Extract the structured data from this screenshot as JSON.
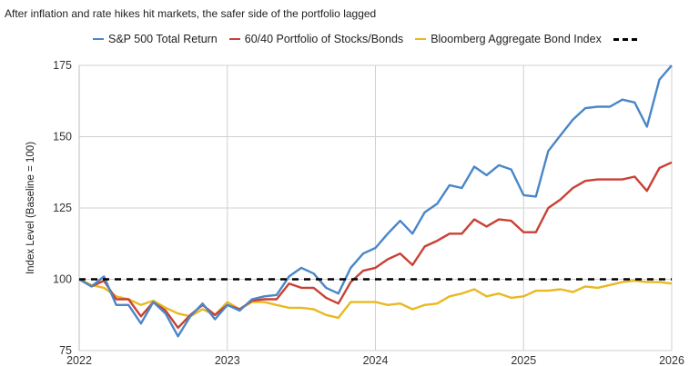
{
  "subtitle": "After inflation and rate hikes hit markets, the safer side of the portfolio lagged",
  "chart_data": {
    "type": "line",
    "ylabel": "Index Level (Baseline = 100)",
    "xlabel": "",
    "xlim": [
      2022,
      2026
    ],
    "ylim": [
      75,
      175
    ],
    "x_ticks": [
      "2022",
      "2023",
      "2024",
      "2025",
      "2026"
    ],
    "y_ticks": [
      "75",
      "100",
      "125",
      "150",
      "175"
    ],
    "grid": true,
    "legend_placement": "top",
    "baseline": {
      "label": "",
      "value": 100,
      "color": "#000000"
    },
    "series": [
      {
        "name": "S&P 500 Total Return",
        "color": "#4a86c8",
        "values": [
          [
            2022.0,
            100
          ],
          [
            2022.083,
            97.5
          ],
          [
            2022.167,
            101
          ],
          [
            2022.25,
            91
          ],
          [
            2022.333,
            91
          ],
          [
            2022.417,
            84.5
          ],
          [
            2022.5,
            92
          ],
          [
            2022.583,
            88
          ],
          [
            2022.667,
            80
          ],
          [
            2022.75,
            87
          ],
          [
            2022.833,
            91.5
          ],
          [
            2022.917,
            86
          ],
          [
            2023.0,
            91
          ],
          [
            2023.083,
            89
          ],
          [
            2023.167,
            93
          ],
          [
            2023.25,
            94
          ],
          [
            2023.333,
            94.5
          ],
          [
            2023.417,
            101
          ],
          [
            2023.5,
            104
          ],
          [
            2023.583,
            102
          ],
          [
            2023.667,
            97
          ],
          [
            2023.75,
            95
          ],
          [
            2023.833,
            104
          ],
          [
            2023.917,
            109
          ],
          [
            2024.0,
            111
          ],
          [
            2024.083,
            116
          ],
          [
            2024.167,
            120.5
          ],
          [
            2024.25,
            116
          ],
          [
            2024.333,
            123.5
          ],
          [
            2024.417,
            126.5
          ],
          [
            2024.5,
            133
          ],
          [
            2024.583,
            132
          ],
          [
            2024.667,
            139.5
          ],
          [
            2024.75,
            136.5
          ],
          [
            2024.833,
            140
          ],
          [
            2024.917,
            138.5
          ],
          [
            2025.0,
            129.5
          ],
          [
            2025.083,
            129
          ],
          [
            2025.167,
            145
          ],
          [
            2025.25,
            150.5
          ],
          [
            2025.333,
            156
          ],
          [
            2025.417,
            160
          ],
          [
            2025.5,
            160.5
          ],
          [
            2025.583,
            160.5
          ],
          [
            2025.667,
            163
          ],
          [
            2025.75,
            162
          ],
          [
            2025.833,
            153.5
          ],
          [
            2025.917,
            170
          ],
          [
            2026.0,
            175
          ]
        ]
      },
      {
        "name": "60/40 Portfolio of Stocks/Bonds",
        "color": "#c94034",
        "values": [
          [
            2022.0,
            100
          ],
          [
            2022.083,
            97.5
          ],
          [
            2022.167,
            99.5
          ],
          [
            2022.25,
            93
          ],
          [
            2022.333,
            93
          ],
          [
            2022.417,
            87
          ],
          [
            2022.5,
            92
          ],
          [
            2022.583,
            89
          ],
          [
            2022.667,
            83
          ],
          [
            2022.75,
            87.5
          ],
          [
            2022.833,
            91
          ],
          [
            2022.917,
            87.5
          ],
          [
            2023.0,
            91
          ],
          [
            2023.083,
            89.5
          ],
          [
            2023.167,
            92.5
          ],
          [
            2023.25,
            93
          ],
          [
            2023.333,
            93
          ],
          [
            2023.417,
            98.5
          ],
          [
            2023.5,
            97
          ],
          [
            2023.583,
            97
          ],
          [
            2023.667,
            93.5
          ],
          [
            2023.75,
            91.5
          ],
          [
            2023.833,
            99
          ],
          [
            2023.917,
            103
          ],
          [
            2024.0,
            104
          ],
          [
            2024.083,
            107
          ],
          [
            2024.167,
            109
          ],
          [
            2024.25,
            105
          ],
          [
            2024.333,
            111.5
          ],
          [
            2024.417,
            113.5
          ],
          [
            2024.5,
            116
          ],
          [
            2024.583,
            116
          ],
          [
            2024.667,
            121
          ],
          [
            2024.75,
            118.5
          ],
          [
            2024.833,
            121
          ],
          [
            2024.917,
            120.5
          ],
          [
            2025.0,
            116.5
          ],
          [
            2025.083,
            116.5
          ],
          [
            2025.167,
            125
          ],
          [
            2025.25,
            128
          ],
          [
            2025.333,
            132
          ],
          [
            2025.417,
            134.5
          ],
          [
            2025.5,
            135
          ],
          [
            2025.583,
            135
          ],
          [
            2025.667,
            135
          ],
          [
            2025.75,
            136
          ],
          [
            2025.833,
            131
          ],
          [
            2025.917,
            139
          ],
          [
            2026.0,
            141
          ]
        ]
      },
      {
        "name": "Bloomberg Aggregate Bond Index",
        "color": "#e8b923",
        "values": [
          [
            2022.0,
            100
          ],
          [
            2022.083,
            98
          ],
          [
            2022.167,
            97
          ],
          [
            2022.25,
            94
          ],
          [
            2022.333,
            93
          ],
          [
            2022.417,
            91
          ],
          [
            2022.5,
            92.5
          ],
          [
            2022.583,
            90
          ],
          [
            2022.667,
            88
          ],
          [
            2022.75,
            87
          ],
          [
            2022.833,
            89.5
          ],
          [
            2022.917,
            87.5
          ],
          [
            2023.0,
            92
          ],
          [
            2023.083,
            89.5
          ],
          [
            2023.167,
            92
          ],
          [
            2023.25,
            92
          ],
          [
            2023.333,
            91
          ],
          [
            2023.417,
            90
          ],
          [
            2023.5,
            90
          ],
          [
            2023.583,
            89.5
          ],
          [
            2023.667,
            87.5
          ],
          [
            2023.75,
            86.5
          ],
          [
            2023.833,
            92
          ],
          [
            2023.917,
            92
          ],
          [
            2024.0,
            92
          ],
          [
            2024.083,
            91
          ],
          [
            2024.167,
            91.5
          ],
          [
            2024.25,
            89.5
          ],
          [
            2024.333,
            91
          ],
          [
            2024.417,
            91.5
          ],
          [
            2024.5,
            94
          ],
          [
            2024.583,
            95
          ],
          [
            2024.667,
            96.5
          ],
          [
            2024.75,
            94
          ],
          [
            2024.833,
            95
          ],
          [
            2024.917,
            93.5
          ],
          [
            2025.0,
            94
          ],
          [
            2025.083,
            96
          ],
          [
            2025.167,
            96
          ],
          [
            2025.25,
            96.5
          ],
          [
            2025.333,
            95.5
          ],
          [
            2025.417,
            97.5
          ],
          [
            2025.5,
            97
          ],
          [
            2025.583,
            98
          ],
          [
            2025.667,
            99
          ],
          [
            2025.75,
            99.5
          ],
          [
            2025.833,
            99
          ],
          [
            2025.917,
            99
          ],
          [
            2026.0,
            98.5
          ]
        ]
      }
    ]
  }
}
